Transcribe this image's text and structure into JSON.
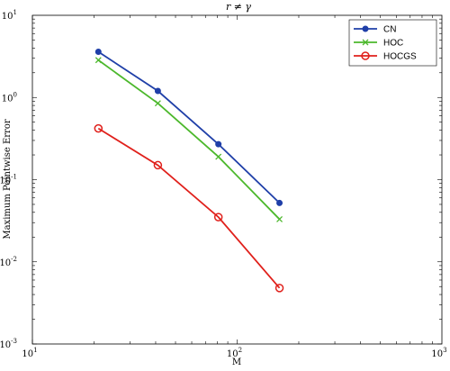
{
  "chart_data": {
    "type": "line",
    "title": "r ≠ γ",
    "xlabel": "M",
    "ylabel": "Maximum Pointwise Error",
    "xscale": "log",
    "yscale": "log",
    "xlim": [
      10,
      1000
    ],
    "ylim": [
      0.001,
      10
    ],
    "x_ticks": [
      {
        "base": "10",
        "exp": "1"
      },
      {
        "base": "10",
        "exp": "2"
      },
      {
        "base": "10",
        "exp": "3"
      }
    ],
    "y_ticks": [
      {
        "base": "10",
        "exp": "-3"
      },
      {
        "base": "10",
        "exp": "-2"
      },
      {
        "base": "10",
        "exp": "-1"
      },
      {
        "base": "10",
        "exp": "0"
      },
      {
        "base": "10",
        "exp": "1"
      }
    ],
    "grid": false,
    "legend_position": "top-right",
    "x": [
      21,
      41,
      81,
      161
    ],
    "series": [
      {
        "name": "CN",
        "values": [
          3.6,
          1.2,
          0.27,
          0.052
        ],
        "color": "#1f3fa8",
        "marker": "filled-circle"
      },
      {
        "name": "HOC",
        "values": [
          2.85,
          0.85,
          0.19,
          0.033
        ],
        "color": "#4cb82c",
        "marker": "x"
      },
      {
        "name": "HOCGS",
        "values": [
          0.42,
          0.15,
          0.035,
          0.0048
        ],
        "color": "#e0201b",
        "marker": "open-circle"
      }
    ]
  }
}
